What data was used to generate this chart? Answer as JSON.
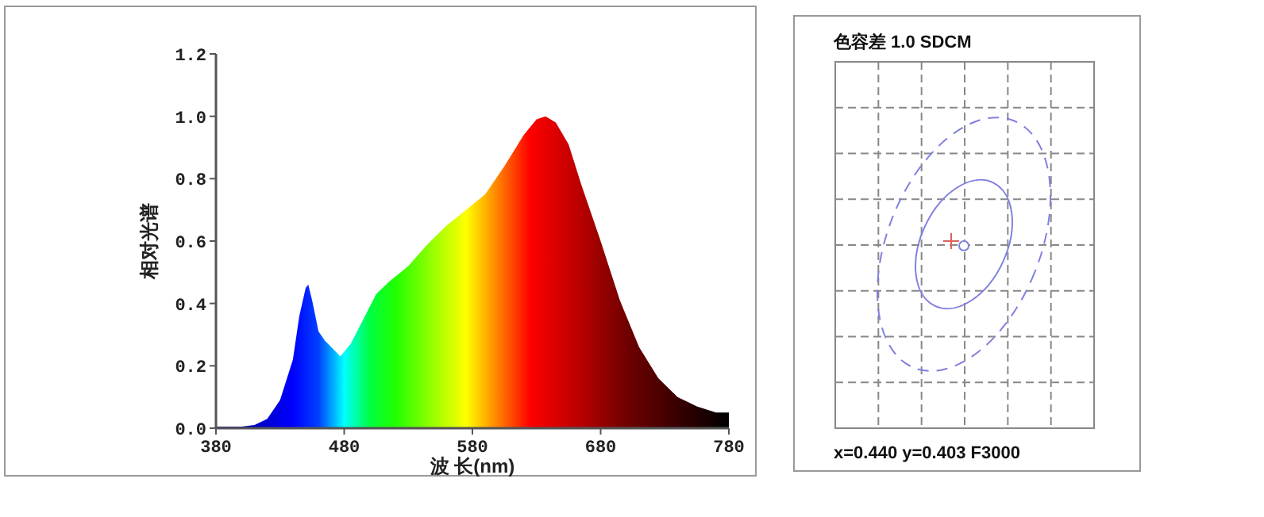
{
  "chart_data": [
    {
      "type": "area",
      "xlabel": "波 长(nm)",
      "ylabel": "相对光谱",
      "x": [
        380,
        400,
        410,
        420,
        430,
        440,
        445,
        450,
        452,
        455,
        460,
        465,
        470,
        477,
        485,
        495,
        505,
        515,
        530,
        545,
        560,
        575,
        590,
        605,
        620,
        630,
        637,
        645,
        655,
        665,
        680,
        695,
        710,
        725,
        740,
        755,
        770,
        780
      ],
      "values": [
        0.005,
        0.005,
        0.01,
        0.03,
        0.09,
        0.22,
        0.36,
        0.45,
        0.46,
        0.41,
        0.31,
        0.28,
        0.26,
        0.23,
        0.27,
        0.35,
        0.43,
        0.47,
        0.52,
        0.59,
        0.65,
        0.7,
        0.75,
        0.84,
        0.94,
        0.99,
        1.0,
        0.98,
        0.91,
        0.78,
        0.6,
        0.41,
        0.26,
        0.16,
        0.1,
        0.07,
        0.05,
        0.05
      ],
      "xlim": [
        380,
        780
      ],
      "ylim": [
        0,
        1.2
      ],
      "xticks": [
        380,
        480,
        580,
        680,
        780
      ],
      "yticks": [
        {
          "value": 0,
          "label": "0.0"
        },
        {
          "value": 0.2,
          "label": "0.2"
        },
        {
          "value": 0.4,
          "label": "0.4"
        },
        {
          "value": 0.6,
          "label": "0.6"
        },
        {
          "value": 0.8,
          "label": "0.8"
        },
        {
          "value": 1,
          "label": "1.0"
        },
        {
          "value": 1.2,
          "label": "1.2"
        }
      ]
    },
    {
      "type": "other",
      "title": "色容差  1.0 SDCM",
      "annotations": [
        "x=0.440 y=0.403 F3000"
      ]
    }
  ]
}
